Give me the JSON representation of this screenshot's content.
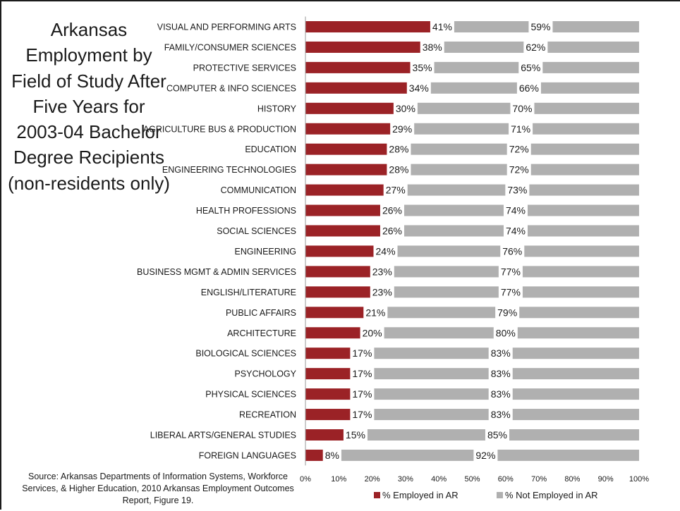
{
  "title": "Arkansas Employment by Field of Study After Five Years for 2003-04 Bachelor Degree Recipients (non-residents only)",
  "source": "Source: Arkansas Departments of Information Systems, Workforce Services, & Higher Education, 2010 Arkansas Employment Outcomes Report, Figure 19.",
  "legend": {
    "employed": "% Employed in AR",
    "not_employed": "% Not Employed in AR"
  },
  "colors": {
    "employed": "#9b2226",
    "not_employed": "#b0b0b0"
  },
  "chart_data": {
    "type": "bar",
    "orientation": "horizontal",
    "stacked": true,
    "title": "Arkansas Employment by Field of Study After Five Years for 2003-04 Bachelor Degree Recipients (non-residents only)",
    "xlabel": "",
    "ylabel": "",
    "xlim": [
      0,
      100
    ],
    "x_ticks": [
      "0%",
      "10%",
      "20%",
      "30%",
      "40%",
      "50%",
      "60%",
      "70%",
      "80%",
      "90%",
      "100%"
    ],
    "grid": false,
    "legend_position": "bottom",
    "categories": [
      "VISUAL AND PERFORMING ARTS",
      "FAMILY/CONSUMER SCIENCES",
      "PROTECTIVE SERVICES",
      "COMPUTER & INFO SCIENCES",
      "HISTORY",
      "AGRICULTURE BUS & PRODUCTION",
      "EDUCATION",
      "ENGINEERING TECHNOLOGIES",
      "COMMUNICATION",
      "HEALTH PROFESSIONS",
      "SOCIAL SCIENCES",
      "ENGINEERING",
      "BUSINESS MGMT & ADMIN SERVICES",
      "ENGLISH/LITERATURE",
      "PUBLIC AFFAIRS",
      "ARCHITECTURE",
      "BIOLOGICAL SCIENCES",
      "PSYCHOLOGY",
      "PHYSICAL SCIENCES",
      "RECREATION",
      "LIBERAL ARTS/GENERAL STUDIES",
      "FOREIGN LANGUAGES"
    ],
    "series": [
      {
        "name": "% Employed in AR",
        "values": [
          41,
          38,
          35,
          34,
          30,
          29,
          28,
          28,
          27,
          26,
          26,
          24,
          23,
          23,
          21,
          20,
          17,
          17,
          17,
          17,
          15,
          8
        ],
        "labels": [
          "41%",
          "38%",
          "35%",
          "34%",
          "30%",
          "29%",
          "28%",
          "28%",
          "27%",
          "26%",
          "26%",
          "24%",
          "23%",
          "23%",
          "21%",
          "20%",
          "17%",
          "17%",
          "17%",
          "17%",
          "15%",
          "8%"
        ]
      },
      {
        "name": "% Not Employed in AR",
        "values": [
          59,
          62,
          65,
          66,
          70,
          71,
          72,
          72,
          73,
          74,
          74,
          76,
          77,
          77,
          79,
          80,
          83,
          83,
          83,
          83,
          85,
          92
        ],
        "labels": [
          "59%",
          "62%",
          "65%",
          "66%",
          "70%",
          "71%",
          "72%",
          "72%",
          "73%",
          "74%",
          "74%",
          "76%",
          "77%",
          "77%",
          "79%",
          "80%",
          "83%",
          "83%",
          "83%",
          "83%",
          "85%",
          "92%"
        ]
      }
    ]
  }
}
